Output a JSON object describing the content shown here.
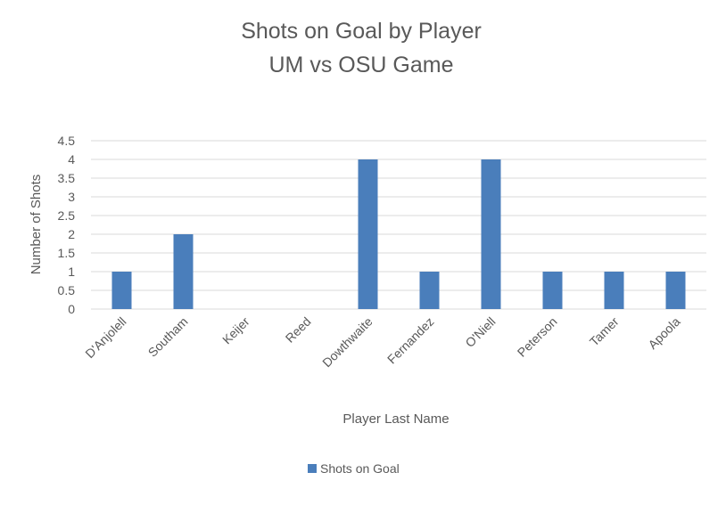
{
  "chart_data": {
    "type": "bar",
    "title": [
      "Shots on Goal by Player",
      "UM vs OSU Game"
    ],
    "xlabel": "Player Last Name",
    "ylabel": "Number of Shots",
    "categories": [
      "D'Anjolell",
      "Southam",
      "Keijer",
      "Reed",
      "Dowthwaite",
      "Fernandez",
      "O'Niell",
      "Peterson",
      "Tamer",
      "Apoola"
    ],
    "series": [
      {
        "name": "Shots on Goal",
        "values": [
          1,
          2,
          0,
          0,
          4,
          1,
          4,
          1,
          1,
          1
        ]
      }
    ],
    "ylim": [
      0,
      4.5
    ],
    "yticks": [
      "0",
      "0.5",
      "1",
      "1.5",
      "2",
      "2.5",
      "3",
      "3.5",
      "4",
      "4.5"
    ],
    "grid": true,
    "legend_position": "bottom",
    "bar_color": "#4a7ebb"
  }
}
